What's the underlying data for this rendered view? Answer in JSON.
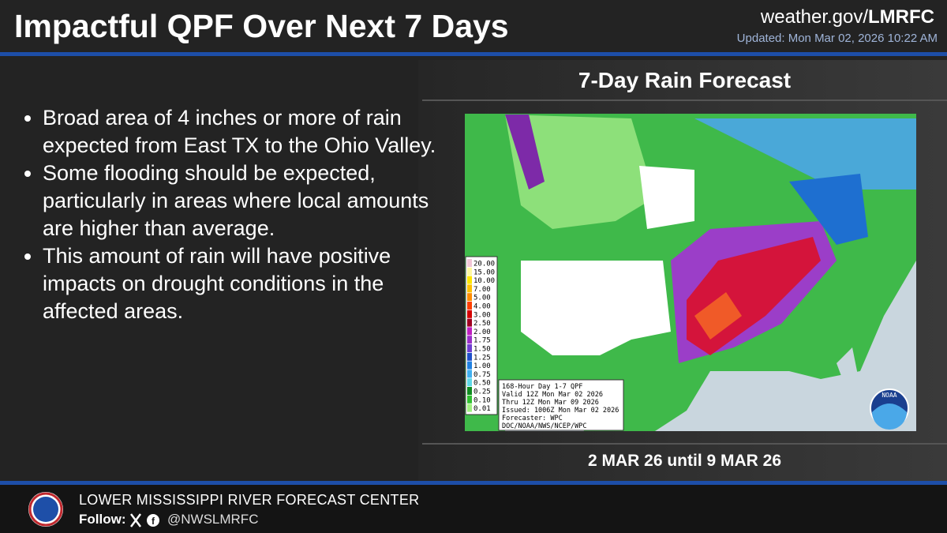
{
  "header": {
    "title": "Impactful QPF Over Next 7 Days",
    "site_prefix": "weather.gov/",
    "site_suffix": "LMRFC",
    "updated": "Updated: Mon Mar 02, 2026 10:22 AM"
  },
  "bullets": [
    "Broad area of 4 inches or more of rain expected from East TX to the Ohio Valley.",
    "Some flooding should be expected, particularly in areas where local amounts are higher than average.",
    "This amount of rain will have positive impacts on drought conditions in the affected areas."
  ],
  "panel": {
    "title": "7-Day Rain Forecast",
    "dates": "2 MAR 26 until 9 MAR 26",
    "legend": [
      "20.00",
      "15.00",
      "10.00",
      "7.00",
      "5.00",
      "4.00",
      "3.00",
      "2.50",
      "2.00",
      "1.75",
      "1.50",
      "1.25",
      "1.00",
      "0.75",
      "0.50",
      "0.25",
      "0.10",
      "0.01"
    ],
    "info": [
      "168-Hour Day 1-7 QPF",
      "Valid 12Z Mon Mar 02 2026",
      "Thru 12Z Mon Mar 09 2026",
      "Issued: 1006Z Mon Mar 02 2026",
      "Forecaster: WPC",
      "DOC/NOAA/NWS/NCEP/WPC"
    ],
    "logo": "NOAA"
  },
  "footer": {
    "org": "LOWER MISSISSIPPI RIVER FORECAST CENTER",
    "follow": "Follow:",
    "handle": "@NWSLMRFC"
  }
}
